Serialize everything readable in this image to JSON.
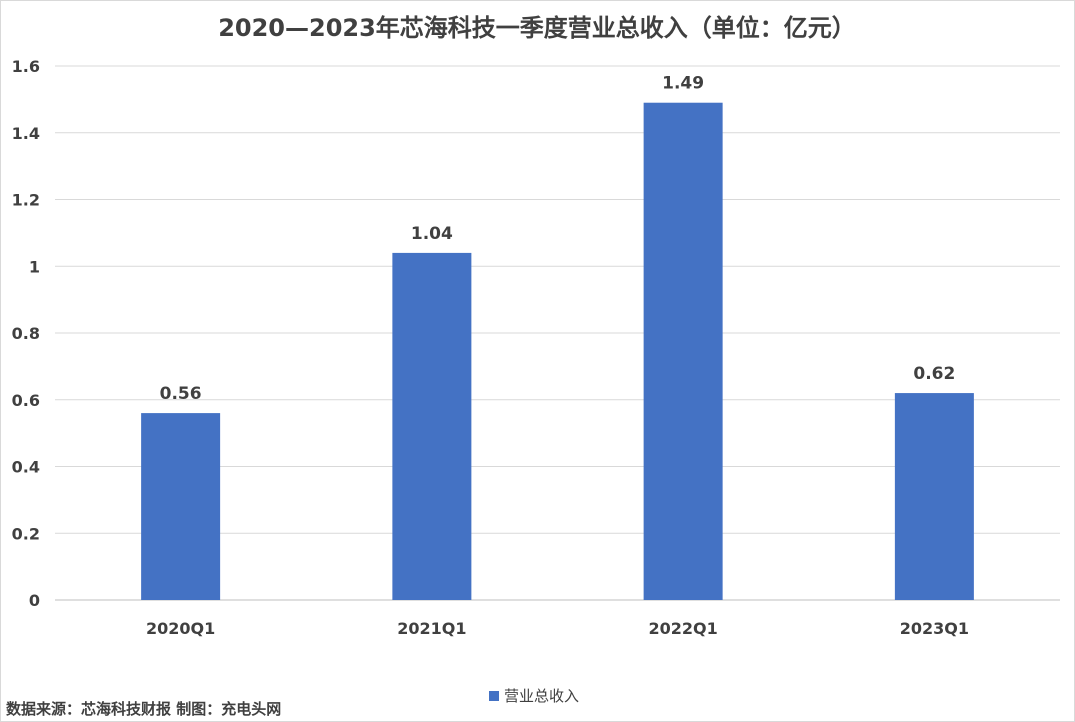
{
  "chart_data": {
    "type": "bar",
    "title": "2020—2023年芯海科技一季度营业总收入（单位：亿元）",
    "categories": [
      "2020Q1",
      "2021Q1",
      "2022Q1",
      "2023Q1"
    ],
    "series": [
      {
        "name": "营业总收入",
        "values": [
          0.56,
          1.04,
          1.49,
          0.62
        ],
        "data_labels": [
          "0.56",
          "1.04",
          "1.49",
          "0.62"
        ],
        "color": "#4472c4"
      }
    ],
    "ylim": [
      0,
      1.6
    ],
    "yticks": [
      0,
      0.2,
      0.4,
      0.6,
      0.8,
      1,
      1.2,
      1.4,
      1.6
    ],
    "ytick_labels": [
      "0",
      "0.2",
      "0.4",
      "0.6",
      "0.8",
      "1",
      "1.2",
      "1.4",
      "1.6"
    ],
    "grid": true,
    "legend": "bottom",
    "xlabel": "",
    "ylabel": ""
  },
  "footer": {
    "source": "数据来源：芯海科技财报 制图：充电头网"
  }
}
